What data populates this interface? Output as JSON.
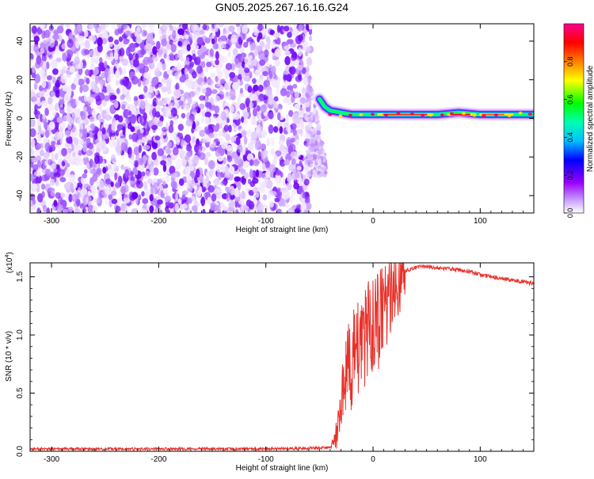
{
  "page_title": "GN05.2025.267.16.16.G24",
  "colorbar": {
    "label": "Normalized spectral amplitude",
    "ticks": [
      "0.0",
      "0.2",
      "0.4",
      "0.6",
      "0.8"
    ],
    "colors": [
      "#ffffff",
      "#9b00ff",
      "#0000ff",
      "#00ffff",
      "#00ff00",
      "#ffff00",
      "#ff0000",
      "#ff0090"
    ]
  },
  "chart_data": [
    {
      "type": "heatmap",
      "title": "",
      "xlabel": "Height of straight line (km)",
      "ylabel": "Frequency (Hz)",
      "xlim": [
        -320,
        150
      ],
      "ylim": [
        -49,
        49
      ],
      "xticks": [
        -300,
        -200,
        -100,
        0,
        100
      ],
      "xtick_labels": [
        "-300",
        "-200",
        "-100",
        "0",
        "100"
      ],
      "yticks": [
        -40,
        -20,
        0,
        20,
        40
      ],
      "ytick_labels": [
        "-40",
        "-20",
        "0",
        "20",
        "40"
      ],
      "regions": [
        {
          "x_range": [
            -320,
            -58
          ],
          "freq_range": [
            -49,
            49
          ],
          "description_level": 0.12
        },
        {
          "x_range": [
            -58,
            150
          ],
          "center_freq": 2,
          "amplitude_peak": 1.0
        }
      ],
      "ridge_points": [
        {
          "x": -50,
          "f": 10,
          "a": 0.35
        },
        {
          "x": -45,
          "f": 6,
          "a": 0.5
        },
        {
          "x": -40,
          "f": 4,
          "a": 0.55
        },
        {
          "x": -30,
          "f": 3,
          "a": 0.65
        },
        {
          "x": -20,
          "f": 2,
          "a": 0.8
        },
        {
          "x": -10,
          "f": 2,
          "a": 0.85
        },
        {
          "x": 0,
          "f": 2,
          "a": 0.9
        },
        {
          "x": 20,
          "f": 2,
          "a": 0.9
        },
        {
          "x": 40,
          "f": 2,
          "a": 0.85
        },
        {
          "x": 60,
          "f": 2,
          "a": 0.8
        },
        {
          "x": 80,
          "f": 3,
          "a": 0.95
        },
        {
          "x": 100,
          "f": 2,
          "a": 0.85
        },
        {
          "x": 120,
          "f": 2,
          "a": 0.6
        },
        {
          "x": 150,
          "f": 2,
          "a": 0.45
        }
      ]
    },
    {
      "type": "line",
      "title": "",
      "xlabel": "Height of straight line (km)",
      "ylabel": "SNR (10 * v/v)",
      "y_multiplier_label": "(x10",
      "y_multiplier_exp": "4",
      "y_multiplier_close": ")",
      "xlim": [
        -320,
        150
      ],
      "ylim": [
        0,
        1.62
      ],
      "xticks": [
        -300,
        -200,
        -100,
        0,
        100
      ],
      "xtick_labels": [
        "-300",
        "-200",
        "-100",
        "0",
        "100"
      ],
      "yticks": [
        0.0,
        0.5,
        1.0,
        1.5
      ],
      "ytick_labels": [
        "0.0",
        "0.5",
        "1.0",
        "1.5"
      ],
      "color": "#e8312b",
      "series": [
        {
          "x": [
            -320,
            -200,
            -100,
            -40,
            -35,
            -30,
            -25,
            -20,
            -15,
            -10,
            -5,
            0,
            5,
            10,
            15,
            20,
            25,
            30,
            40,
            50,
            60,
            70,
            80,
            90,
            100,
            110,
            120,
            130,
            140,
            150
          ],
          "y": [
            0.02,
            0.02,
            0.02,
            0.03,
            0.1,
            0.4,
            0.7,
            0.8,
            0.85,
            0.9,
            1.0,
            1.1,
            1.15,
            1.2,
            1.3,
            1.4,
            1.48,
            1.55,
            1.58,
            1.59,
            1.58,
            1.57,
            1.56,
            1.55,
            1.52,
            1.5,
            1.49,
            1.47,
            1.46,
            1.44
          ]
        }
      ]
    }
  ]
}
